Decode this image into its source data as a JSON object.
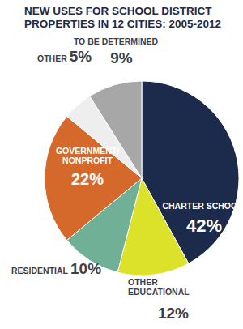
{
  "chart_data": {
    "type": "pie",
    "title": "NEW USES FOR SCHOOL DISTRICT PROPERTIES IN 12 CITIES: 2005-2012",
    "categories": [
      "CHARTER SCHOOL",
      "OTHER EDUCATIONAL",
      "RESIDENTIAL",
      "GOVERNMENT/NONPROFIT",
      "OTHER",
      "TO BE DETERMINED"
    ],
    "values": [
      42,
      12,
      10,
      22,
      5,
      9
    ],
    "value_labels": [
      "42%",
      "12%",
      "10%",
      "22%",
      "5%",
      "9%"
    ],
    "colors": [
      "#1c2b4b",
      "#dce22a",
      "#6fb096",
      "#d4692b",
      "#eeeeee",
      "#a7a7a7"
    ],
    "data_labels": true
  }
}
